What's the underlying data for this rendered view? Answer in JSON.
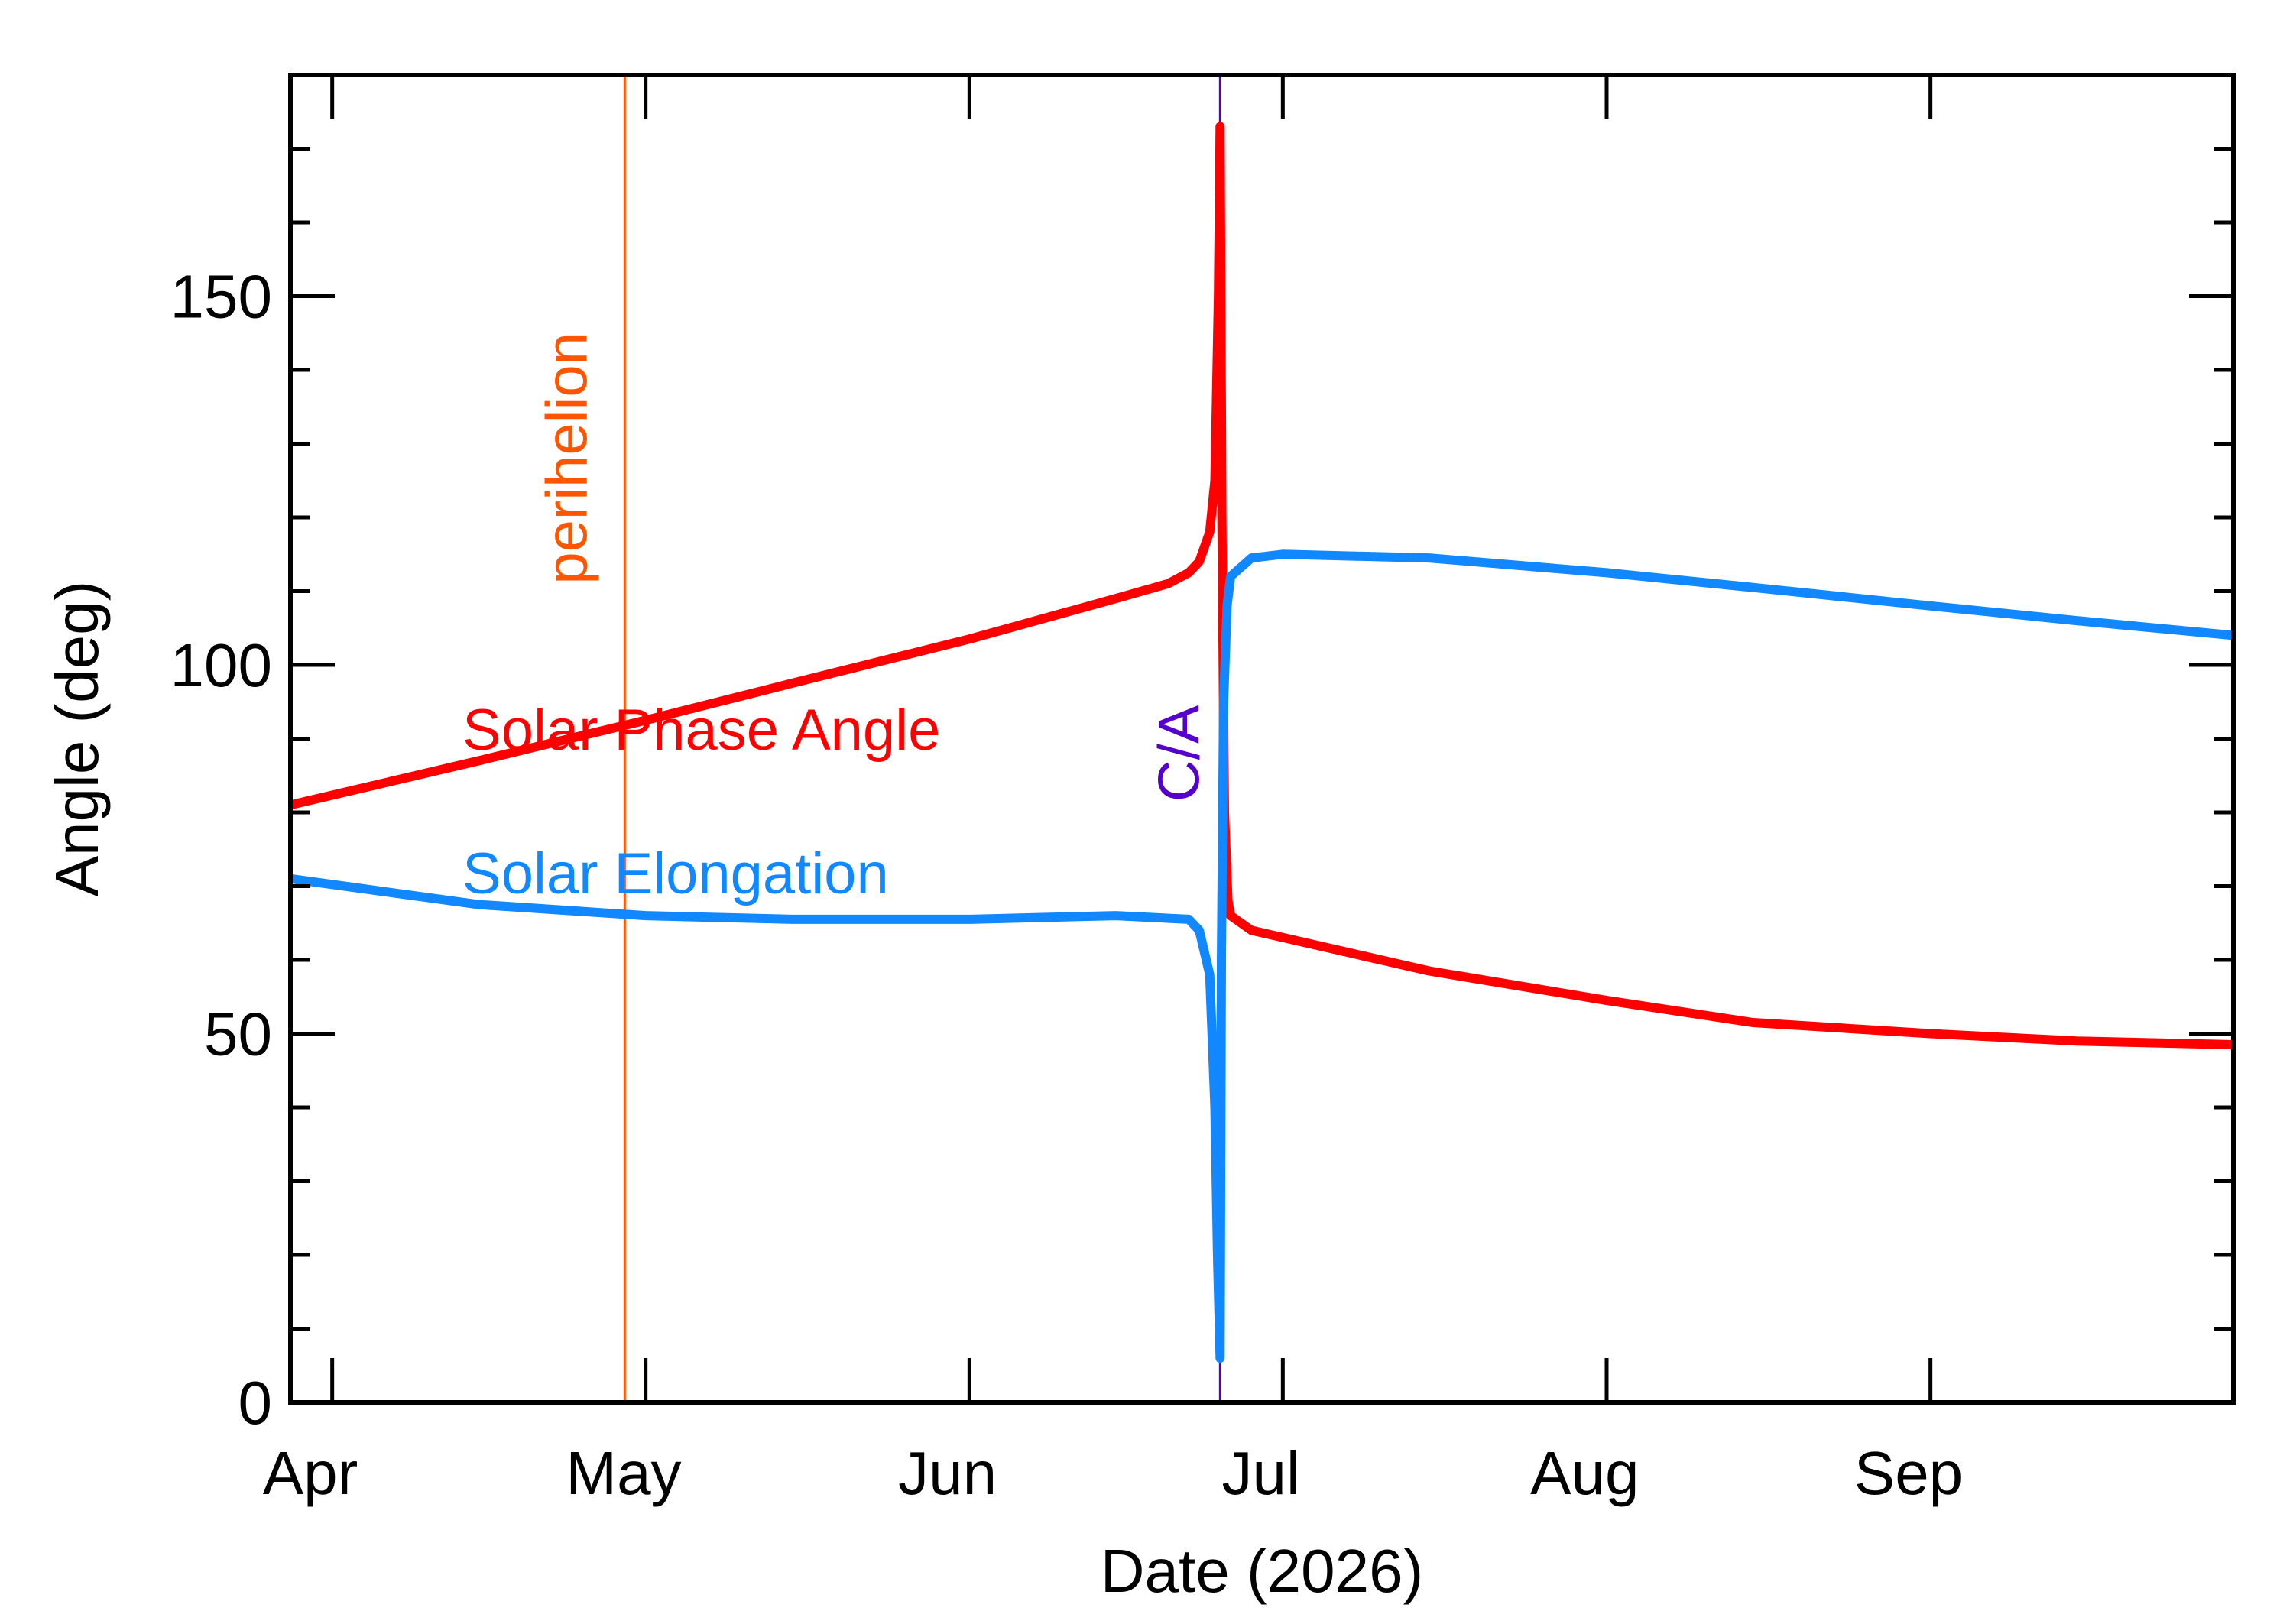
{
  "chart_data": {
    "type": "line",
    "title": "",
    "xlabel": "Date (2026)",
    "ylabel": "Angle (deg)",
    "xlim": [
      "2026-03-28",
      "2026-09-30"
    ],
    "ylim": [
      0,
      180
    ],
    "x_tick_labels": [
      {
        "date": "2026-04-01",
        "label": "Apr"
      },
      {
        "date": "2026-05-01",
        "label": "May"
      },
      {
        "date": "2026-06-01",
        "label": "Jun"
      },
      {
        "date": "2026-07-01",
        "label": "Jul"
      },
      {
        "date": "2026-08-01",
        "label": "Aug"
      },
      {
        "date": "2026-09-01",
        "label": "Sep"
      }
    ],
    "y_tick_labels": [
      {
        "value": 0,
        "label": "0"
      },
      {
        "value": 50,
        "label": "50"
      },
      {
        "value": 100,
        "label": "100"
      },
      {
        "value": 150,
        "label": "150"
      }
    ],
    "grid": false,
    "vertical_markers": [
      {
        "label": "perihelion",
        "date": "2026-04-29",
        "color": "#ff5500"
      },
      {
        "label": "C/A",
        "date": "2026-06-25",
        "color": "#5500cc"
      }
    ],
    "series": [
      {
        "name": "Solar Phase Angle",
        "color": "#ff0000",
        "points": [
          [
            "2026-03-28",
            81
          ],
          [
            "2026-04-15",
            87
          ],
          [
            "2026-05-01",
            92.5
          ],
          [
            "2026-05-15",
            97.5
          ],
          [
            "2026-06-01",
            103.5
          ],
          [
            "2026-06-15",
            109
          ],
          [
            "2026-06-20",
            111
          ],
          [
            "2026-06-22",
            112.5
          ],
          [
            "2026-06-23",
            114
          ],
          [
            "2026-06-24",
            118
          ],
          [
            "2026-06-24T12:00",
            125
          ],
          [
            "2026-06-24T20:00",
            150
          ],
          [
            "2026-06-25",
            173
          ],
          [
            "2026-06-25T04:00",
            120
          ],
          [
            "2026-06-25T10:00",
            80
          ],
          [
            "2026-06-25T18:00",
            68
          ],
          [
            "2026-06-26",
            66
          ],
          [
            "2026-06-28",
            64
          ],
          [
            "2026-07-15",
            58.5
          ],
          [
            "2026-08-01",
            54.5
          ],
          [
            "2026-08-15",
            51.5
          ],
          [
            "2026-09-01",
            50
          ],
          [
            "2026-09-15",
            49
          ],
          [
            "2026-09-30",
            48.5
          ]
        ]
      },
      {
        "name": "Solar Elongation",
        "color": "#1188ff",
        "points": [
          [
            "2026-03-28",
            71
          ],
          [
            "2026-04-15",
            67.5
          ],
          [
            "2026-05-01",
            66
          ],
          [
            "2026-05-15",
            65.5
          ],
          [
            "2026-06-01",
            65.5
          ],
          [
            "2026-06-15",
            66
          ],
          [
            "2026-06-22",
            65.5
          ],
          [
            "2026-06-23",
            64
          ],
          [
            "2026-06-24",
            58
          ],
          [
            "2026-06-24T12:00",
            40
          ],
          [
            "2026-06-24T18:00",
            20
          ],
          [
            "2026-06-25",
            6
          ],
          [
            "2026-06-25T03:00",
            60
          ],
          [
            "2026-06-25T08:00",
            95
          ],
          [
            "2026-06-25T16:00",
            108
          ],
          [
            "2026-06-26",
            112
          ],
          [
            "2026-06-28",
            114.5
          ],
          [
            "2026-07-01",
            115
          ],
          [
            "2026-07-15",
            114.5
          ],
          [
            "2026-08-01",
            112.5
          ],
          [
            "2026-08-15",
            110.5
          ],
          [
            "2026-09-01",
            108
          ],
          [
            "2026-09-15",
            106
          ],
          [
            "2026-09-30",
            104
          ]
        ]
      }
    ],
    "series_labels": [
      {
        "text": "Solar Phase Angle",
        "color": "#ff0000"
      },
      {
        "text": "Solar Elongation",
        "color": "#1188ff"
      }
    ]
  }
}
